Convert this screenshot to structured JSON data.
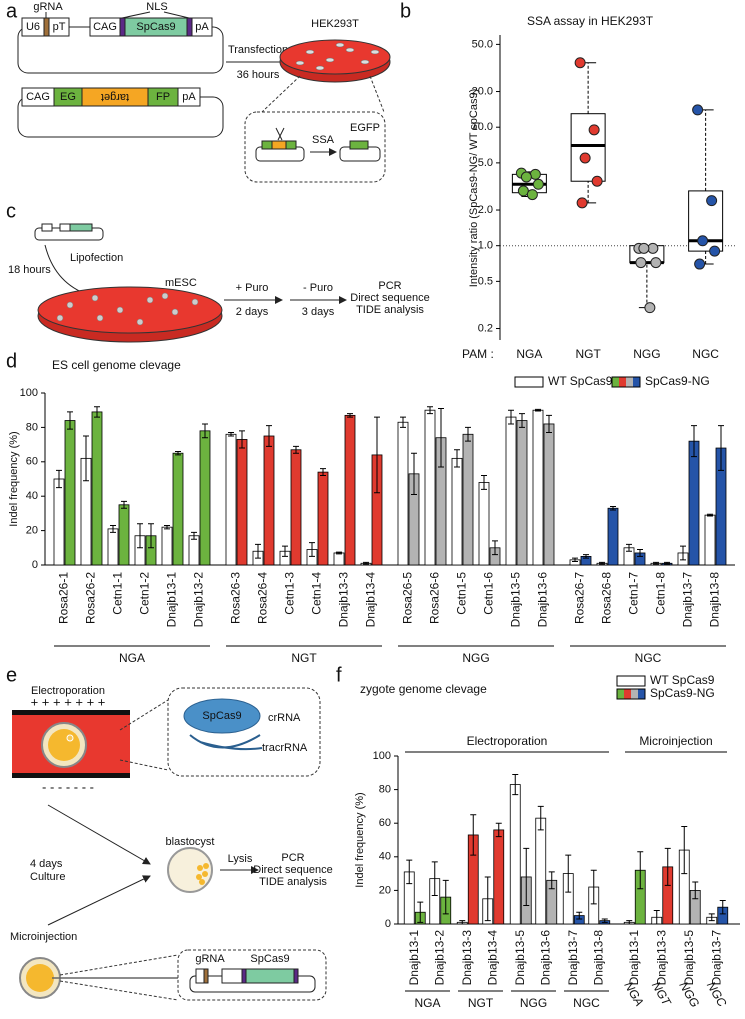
{
  "panel_labels": [
    "a",
    "b",
    "c",
    "d",
    "e",
    "f"
  ],
  "diagram_a": {
    "grna": "gRNA",
    "nls": "NLS",
    "u6": "U6",
    "pt": "pT",
    "cag1": "CAG",
    "spcas9": "SpCas9",
    "pa1": "pA",
    "cag2": "CAG",
    "eg": "EG",
    "target": "target",
    "fp": "FP",
    "pa2": "pA",
    "transfection": "Transfection",
    "hours": "36 hours",
    "cell_line": "HEK293T",
    "ssa": "SSA",
    "egfp": "EGFP"
  },
  "diagram_c": {
    "hours": "18 hours",
    "lipofection": "Lipofection",
    "cell": "mESC",
    "puro_on": "+ Puro",
    "days_on": "2 days",
    "puro_off": "- Puro",
    "days_off": "3 days",
    "analysis": [
      "PCR",
      "Direct sequence",
      "TIDE analysis"
    ]
  },
  "diagram_e": {
    "electroporation": "Electroporation",
    "plus": "+ + + + + + +",
    "minus": "- - - - - - -",
    "protein": "SpCas9",
    "crrna": "crRNA",
    "tracrrna": "tracrRNA",
    "days": "4 days",
    "culture": "Culture",
    "blastocyst": "blastocyst",
    "lysis": "Lysis",
    "analysis": [
      "PCR",
      "Direct sequence",
      "TIDE analysis"
    ],
    "microinjection": "Microinjection",
    "grna": "gRNA",
    "spcas9": "SpCas9"
  },
  "chart_data": [
    {
      "type": "box",
      "title": "SSA assay in HEK293T",
      "y_label": "Intensity ratio (SpCas9-NG/ WT spCas9)",
      "x_label": "PAM :",
      "yscale": "log",
      "ylim": [
        0.16,
        60
      ],
      "yticks": [
        {
          "value": 0.2,
          "label": "0.2"
        },
        {
          "value": 0.5,
          "label": "0.5"
        },
        {
          "value": 1,
          "label": "1.0"
        },
        {
          "value": 2,
          "label": "2.0"
        },
        {
          "value": 5,
          "label": "5.0"
        },
        {
          "value": 10,
          "label": "10.0"
        },
        {
          "value": 20,
          "label": "20.0"
        },
        {
          "value": 50,
          "label": "50.0"
        }
      ],
      "reference_line": 1,
      "series": [
        {
          "name": "NGA",
          "color": "#6cb33f",
          "box": [
            2.6,
            2.8,
            3.3,
            4.0,
            4.2
          ],
          "points": [
            4.1,
            4.0,
            3.8,
            3.3,
            2.9,
            2.7
          ]
        },
        {
          "name": "NGT",
          "color": "#e03a2f",
          "box": [
            2.3,
            3.5,
            7.0,
            13.0,
            35.0
          ],
          "points": [
            35,
            9.5,
            5.5,
            3.5,
            2.3
          ]
        },
        {
          "name": "NGG",
          "color": "#b3b3b3",
          "box": [
            0.3,
            0.72,
            0.72,
            1.0,
            1.0
          ],
          "points": [
            0.95,
            0.95,
            0.95,
            0.72,
            0.72,
            0.3
          ]
        },
        {
          "name": "NGC",
          "color": "#2554a8",
          "box": [
            0.7,
            0.9,
            1.1,
            2.9,
            14.0
          ],
          "points": [
            14,
            2.4,
            1.1,
            0.9,
            0.7
          ]
        }
      ]
    },
    {
      "type": "grouped_bar",
      "title": "ES cell genome clevage",
      "y_label": "Indel frequency (%)",
      "ylim": [
        0,
        100
      ],
      "yticks": [
        0,
        20,
        40,
        60,
        80,
        100
      ],
      "legend": [
        {
          "name": "WT SpCas9",
          "color": "#ffffff"
        },
        {
          "name": "SpCas9-NG",
          "colors": [
            "#6cb33f",
            "#e03a2f",
            "#b3b3b3",
            "#2554a8"
          ]
        }
      ],
      "groups": [
        {
          "name": "NGA",
          "color": "#6cb33f",
          "categories": [
            "Rosa26-1",
            "Rosa26-2",
            "Cetn1-1",
            "Cetn1-2",
            "Dnajb13-1",
            "Dnajb13-2"
          ],
          "wt": {
            "values": [
              50,
              62,
              21,
              17,
              22,
              17
            ],
            "errors": [
              5,
              13,
              2,
              7,
              1,
              2
            ]
          },
          "ng": {
            "values": [
              84,
              89,
              35,
              17,
              65,
              78
            ],
            "errors": [
              5,
              3,
              2,
              7,
              1,
              4
            ]
          }
        },
        {
          "name": "NGT",
          "color": "#e03a2f",
          "categories": [
            "Rosa26-3",
            "Rosa26-4",
            "Cetn1-3",
            "Cetn1-4",
            "Dnajb13-3",
            "Dnajb13-4"
          ],
          "wt": {
            "values": [
              76,
              8,
              8,
              9,
              7,
              1
            ],
            "errors": [
              1,
              4,
              3,
              4,
              0.5,
              0.5
            ]
          },
          "ng": {
            "values": [
              73,
              75,
              67,
              54,
              87,
              64
            ],
            "errors": [
              5,
              6,
              2,
              2,
              1,
              22
            ]
          }
        },
        {
          "name": "NGG",
          "color": "#b3b3b3",
          "categories": [
            "Rosa26-5",
            "Rosa26-6",
            "Cetn1-5",
            "Cetn1-6",
            "Dnajb13-5",
            "Dnajb13-6"
          ],
          "wt": {
            "values": [
              83,
              90,
              62,
              48,
              86,
              90
            ],
            "errors": [
              3,
              2,
              5,
              4,
              4,
              0.5
            ]
          },
          "ng": {
            "values": [
              53,
              74,
              76,
              10,
              84,
              82
            ],
            "errors": [
              12,
              17,
              4,
              4,
              4,
              5
            ]
          }
        },
        {
          "name": "NGC",
          "color": "#2554a8",
          "categories": [
            "Rosa26-7",
            "Rosa26-8",
            "Cetn1-7",
            "Cetn1-8",
            "Dnajb13-7",
            "Dnajb13-8"
          ],
          "wt": {
            "values": [
              3,
              1,
              10,
              1,
              7,
              29
            ],
            "errors": [
              1,
              0.5,
              2,
              0.5,
              4,
              0.5
            ]
          },
          "ng": {
            "values": [
              5,
              33,
              7,
              1,
              72,
              68
            ],
            "errors": [
              1,
              1,
              2,
              0.5,
              9,
              13
            ]
          }
        }
      ]
    },
    {
      "type": "grouped_bar",
      "title": "zygote genome clevage",
      "y_label": "Indel frequency (%)",
      "ylim": [
        0,
        100
      ],
      "yticks": [
        0,
        20,
        40,
        60,
        80,
        100
      ],
      "legend": [
        {
          "name": "WT SpCas9",
          "color": "#ffffff"
        },
        {
          "name": "SpCas9-NG",
          "colors": [
            "#6cb33f",
            "#e03a2f",
            "#b3b3b3",
            "#2554a8"
          ]
        }
      ],
      "sections": [
        {
          "name": "Electroporation",
          "groups": [
            {
              "name": "NGA",
              "color": "#6cb33f",
              "categories": [
                "Dnajb13-1",
                "Dnajb13-2"
              ],
              "wt": {
                "values": [
                  31,
                  27
                ],
                "errors": [
                  7,
                  10
                ]
              },
              "ng": {
                "values": [
                  7,
                  16
                ],
                "errors": [
                  6,
                  10
                ]
              }
            },
            {
              "name": "NGT",
              "color": "#e03a2f",
              "categories": [
                "Dnajb13-3",
                "Dnajb13-4"
              ],
              "wt": {
                "values": [
                  1,
                  15
                ],
                "errors": [
                  1,
                  13
                ]
              },
              "ng": {
                "values": [
                  53,
                  56
                ],
                "errors": [
                  12,
                  4
                ]
              }
            },
            {
              "name": "NGG",
              "color": "#b3b3b3",
              "categories": [
                "Dnajb13-5",
                "Dnajb13-6"
              ],
              "wt": {
                "values": [
                  83,
                  63
                ],
                "errors": [
                  6,
                  7
                ]
              },
              "ng": {
                "values": [
                  28,
                  26
                ],
                "errors": [
                  17,
                  5
                ]
              }
            },
            {
              "name": "NGC",
              "color": "#2554a8",
              "categories": [
                "Dnajb13-7",
                "Dnajb13-8"
              ],
              "wt": {
                "values": [
                  30,
                  22
                ],
                "errors": [
                  11,
                  10
                ]
              },
              "ng": {
                "values": [
                  5,
                  2
                ],
                "errors": [
                  2,
                  1
                ]
              }
            }
          ]
        },
        {
          "name": "Microinjection",
          "groups": [
            {
              "name": "NGA",
              "color": "#6cb33f",
              "categories": [
                "Dnajb13-1"
              ],
              "wt": {
                "values": [
                  1
                ],
                "errors": [
                  1
                ]
              },
              "ng": {
                "values": [
                  32
                ],
                "errors": [
                  11
                ]
              }
            },
            {
              "name": "NGT",
              "color": "#e03a2f",
              "categories": [
                "Dnajb13-3"
              ],
              "wt": {
                "values": [
                  4
                ],
                "errors": [
                  4
                ]
              },
              "ng": {
                "values": [
                  34
                ],
                "errors": [
                  11
                ]
              }
            },
            {
              "name": "NGG",
              "color": "#b3b3b3",
              "categories": [
                "Dnajb13-5"
              ],
              "wt": {
                "values": [
                  44
                ],
                "errors": [
                  14
                ]
              },
              "ng": {
                "values": [
                  20
                ],
                "errors": [
                  5
                ]
              }
            },
            {
              "name": "NGC",
              "color": "#2554a8",
              "categories": [
                "Dnajb13-7"
              ],
              "wt": {
                "values": [
                  4
                ],
                "errors": [
                  2
                ]
              },
              "ng": {
                "values": [
                  10
                ],
                "errors": [
                  4
                ]
              }
            }
          ]
        }
      ]
    }
  ]
}
